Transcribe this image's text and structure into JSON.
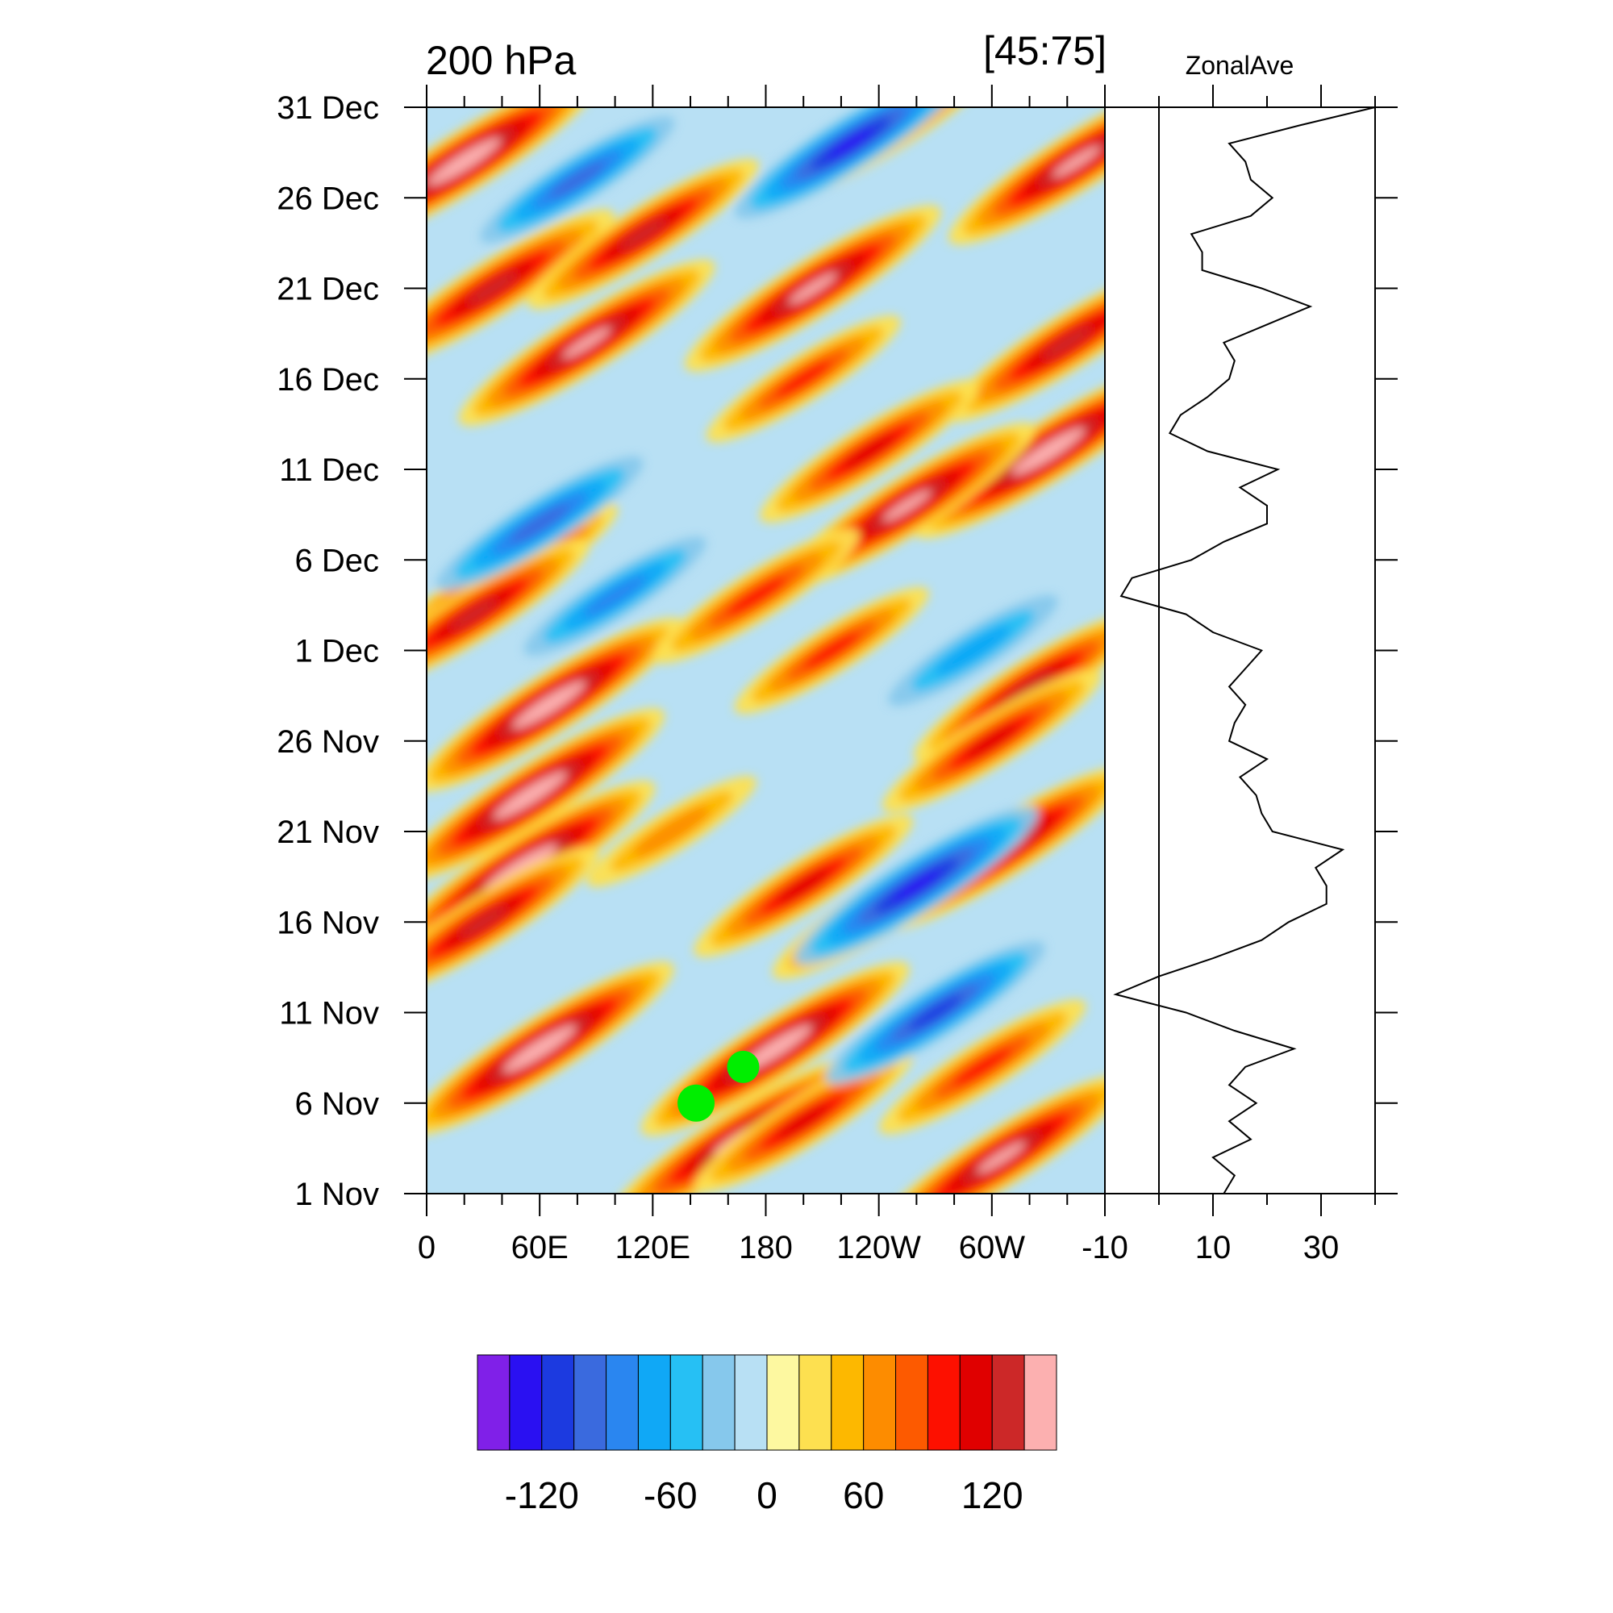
{
  "header": {
    "left_title": "200 hPa",
    "right_title": "[45:75]",
    "side_title": "ZonalAve"
  },
  "colorbar": {
    "colors": [
      "#8020e8",
      "#2a10f2",
      "#1c3ae0",
      "#3a6ade",
      "#2a86f0",
      "#10a8f6",
      "#26c0f4",
      "#86c8ec",
      "#b8e0f4",
      "#fdf8a0",
      "#fde050",
      "#fdb800",
      "#fd8c00",
      "#fd5a00",
      "#fd1000",
      "#e00000",
      "#cc2828",
      "#fcb0b0"
    ],
    "tick_labels": [
      "-120",
      "-60",
      "0",
      "60",
      "120"
    ],
    "tick_values": [
      -120,
      -60,
      0,
      60,
      120
    ]
  },
  "chart_data": [
    {
      "type": "heatmap",
      "title": "200 hPa",
      "subtitle": "[45:75]",
      "x_ticks": [
        "0",
        "60E",
        "120E",
        "180",
        "120W",
        "60W"
      ],
      "x_tick_values": [
        0,
        60,
        120,
        180,
        240,
        300
      ],
      "xlim": [
        0,
        360
      ],
      "y_ticks": [
        "1 Nov",
        "6 Nov",
        "11 Nov",
        "16 Nov",
        "21 Nov",
        "26 Nov",
        "1 Dec",
        "6 Dec",
        "11 Dec",
        "16 Dec",
        "21 Dec",
        "26 Dec",
        "31 Dec"
      ],
      "y_tick_dates": [
        "Nov 1",
        "Nov 6",
        "Nov 11",
        "Nov 16",
        "Nov 21",
        "Nov 26",
        "Dec 1",
        "Dec 6",
        "Dec 11",
        "Dec 16",
        "Dec 21",
        "Dec 26",
        "Dec 31"
      ],
      "ylim": [
        "Nov 1",
        "Dec 31"
      ],
      "levels": [
        -150,
        -135,
        -120,
        -105,
        -90,
        -75,
        -60,
        -45,
        -30,
        0,
        30,
        45,
        60,
        75,
        90,
        105,
        120,
        135,
        150
      ],
      "features": [
        {
          "x": 20,
          "y": "Dec 28",
          "v": 150
        },
        {
          "x": 35,
          "y": "Dec 21",
          "v": 130
        },
        {
          "x": 85,
          "y": "Dec 18",
          "v": 140
        },
        {
          "x": 115,
          "y": "Dec 24",
          "v": 120
        },
        {
          "x": 205,
          "y": "Dec 21",
          "v": 140
        },
        {
          "x": 245,
          "y": "Dec 30",
          "v": 120
        },
        {
          "x": 345,
          "y": "Dec 28",
          "v": 140
        },
        {
          "x": 225,
          "y": "Dec 29",
          "v": -120
        },
        {
          "x": 340,
          "y": "Dec 18",
          "v": 130
        },
        {
          "x": 330,
          "y": "Dec 12",
          "v": 150
        },
        {
          "x": 255,
          "y": "Dec 9",
          "v": 140
        },
        {
          "x": 235,
          "y": "Dec 12",
          "v": 110
        },
        {
          "x": 200,
          "y": "Dec 16",
          "v": 90
        },
        {
          "x": 40,
          "y": "Dec 5",
          "v": 120
        },
        {
          "x": 25,
          "y": "Dec 3",
          "v": 120
        },
        {
          "x": 215,
          "y": "Dec 1",
          "v": 90
        },
        {
          "x": 320,
          "y": "Nov 29",
          "v": 120
        },
        {
          "x": 300,
          "y": "Nov 26",
          "v": 110
        },
        {
          "x": 65,
          "y": "Nov 28",
          "v": 150
        },
        {
          "x": 55,
          "y": "Nov 23",
          "v": 150
        },
        {
          "x": 50,
          "y": "Nov 19",
          "v": 150
        },
        {
          "x": 30,
          "y": "Nov 16",
          "v": 120
        },
        {
          "x": 305,
          "y": "Nov 20",
          "v": 140
        },
        {
          "x": 245,
          "y": "Nov 17",
          "v": 120
        },
        {
          "x": 200,
          "y": "Nov 18",
          "v": 110
        },
        {
          "x": 185,
          "y": "Nov 9",
          "v": 150
        },
        {
          "x": 60,
          "y": "Nov 9",
          "v": 150
        },
        {
          "x": 165,
          "y": "Nov 4",
          "v": 140
        },
        {
          "x": 305,
          "y": "Nov 3",
          "v": 140
        },
        {
          "x": 260,
          "y": "Nov 18",
          "v": -130
        },
        {
          "x": 295,
          "y": "Nov 8",
          "v": 100
        },
        {
          "x": 200,
          "y": "Nov 5",
          "v": 110
        },
        {
          "x": 60,
          "y": "Dec 8",
          "v": -100
        },
        {
          "x": 100,
          "y": "Dec 4",
          "v": -80
        },
        {
          "x": 175,
          "y": "Dec 4",
          "v": 100
        },
        {
          "x": 80,
          "y": "Dec 27",
          "v": -90
        },
        {
          "x": 290,
          "y": "Dec 1",
          "v": -70
        },
        {
          "x": 130,
          "y": "Nov 21",
          "v": 70
        },
        {
          "x": 270,
          "y": "Nov 11",
          "v": -110
        }
      ],
      "markers": [
        {
          "x": 168,
          "y": "Nov 8",
          "shape": "circle",
          "color": "#00ee00"
        },
        {
          "x": 143,
          "y": "Nov 6",
          "shape": "circle",
          "color": "#00ee00"
        }
      ]
    },
    {
      "type": "line",
      "title": "ZonalAve",
      "x_ticks": [
        "-10",
        "10",
        "30"
      ],
      "x_tick_values": [
        -10,
        10,
        30
      ],
      "xlim": [
        -10,
        40
      ],
      "ylim": [
        "Nov 1",
        "Dec 31"
      ],
      "y_dates": [
        "Nov 1",
        "Nov 2",
        "Nov 3",
        "Nov 4",
        "Nov 5",
        "Nov 6",
        "Nov 7",
        "Nov 8",
        "Nov 9",
        "Nov 10",
        "Nov 11",
        "Nov 12",
        "Nov 13",
        "Nov 14",
        "Nov 15",
        "Nov 16",
        "Nov 17",
        "Nov 18",
        "Nov 19",
        "Nov 20",
        "Nov 21",
        "Nov 22",
        "Nov 23",
        "Nov 24",
        "Nov 25",
        "Nov 26",
        "Nov 27",
        "Nov 28",
        "Nov 29",
        "Nov 30",
        "Dec 1",
        "Dec 2",
        "Dec 3",
        "Dec 4",
        "Dec 5",
        "Dec 6",
        "Dec 7",
        "Dec 8",
        "Dec 9",
        "Dec 10",
        "Dec 11",
        "Dec 12",
        "Dec 13",
        "Dec 14",
        "Dec 15",
        "Dec 16",
        "Dec 17",
        "Dec 18",
        "Dec 19",
        "Dec 20",
        "Dec 21",
        "Dec 22",
        "Dec 23",
        "Dec 24",
        "Dec 25",
        "Dec 26",
        "Dec 27",
        "Dec 28",
        "Dec 29",
        "Dec 30",
        "Dec 31"
      ],
      "values": [
        12,
        14,
        10,
        17,
        13,
        18,
        13,
        16,
        25,
        14,
        5,
        -8,
        0,
        10,
        19,
        24,
        31,
        31,
        29,
        34,
        21,
        19,
        18,
        15,
        20,
        13,
        14,
        16,
        13,
        16,
        19,
        10,
        5,
        -7,
        -5,
        6,
        12,
        20,
        20,
        15,
        22,
        9,
        2,
        4,
        9,
        13,
        14,
        12,
        20,
        28,
        19,
        8,
        8,
        6,
        17,
        21,
        17,
        16,
        13,
        26,
        40
      ]
    }
  ]
}
